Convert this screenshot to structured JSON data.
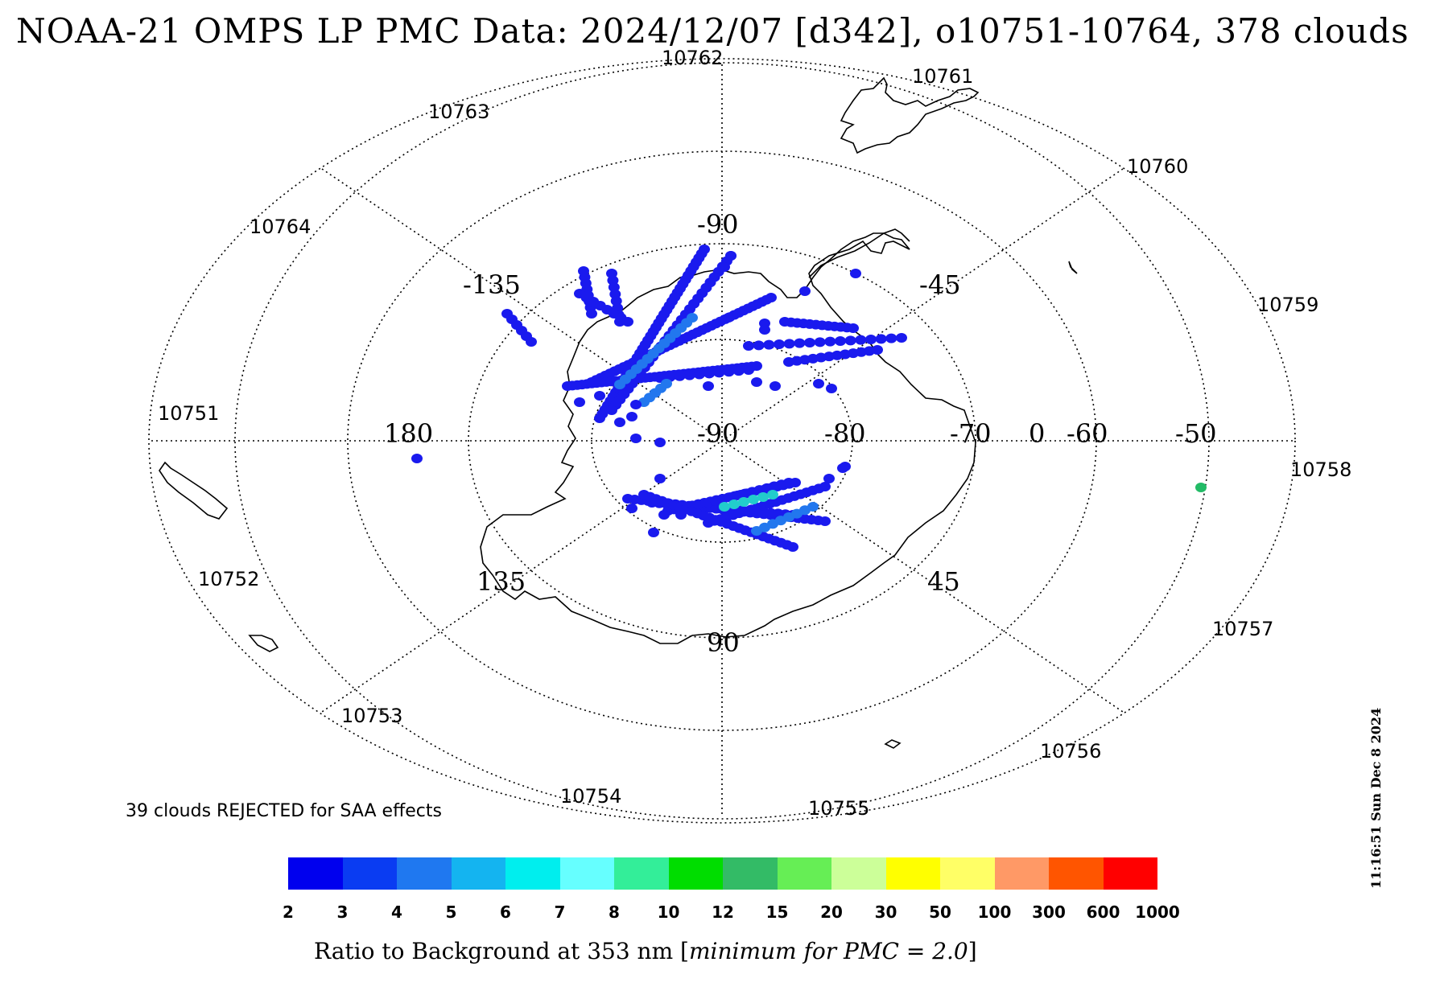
{
  "title": "NOAA-21 OMPS LP PMC Data: 2024/12/07 [d342], o10751-10764, 378 clouds",
  "timestamp": "11:16:51 Sun Dec  8 2024",
  "rejected_note": "39 clouds REJECTED for SAA effects",
  "colorbar": {
    "label_prefix": "Ratio to Background at 353 nm [",
    "label_italic": "minimum for PMC = 2.0",
    "label_suffix": "]",
    "colors": [
      "#0000ee",
      "#0a3cf2",
      "#1f78f0",
      "#14b4f0",
      "#00eeee",
      "#66ffff",
      "#33ee99",
      "#00dd00",
      "#33bb66",
      "#66ee55",
      "#ccff99",
      "#ffff00",
      "#ffff66",
      "#ff9966",
      "#ff5500",
      "#ff0000"
    ],
    "ticks": [
      "2",
      "3",
      "4",
      "5",
      "6",
      "7",
      "8",
      "10",
      "12",
      "15",
      "20",
      "30",
      "50",
      "100",
      "300",
      "600",
      "1000"
    ]
  },
  "map": {
    "lon_labels": [
      "-90",
      "-135",
      "-45",
      "180",
      "135",
      "45",
      "90",
      "0"
    ],
    "lat_labels": [
      "-90",
      "-80",
      "-70",
      "-60",
      "-50"
    ],
    "orbit_labels": [
      "10762",
      "10761",
      "10763",
      "10760",
      "10764",
      "10759",
      "10751",
      "10758",
      "10752",
      "10757",
      "10753",
      "10756",
      "10754",
      "10755"
    ],
    "point_colors": {
      "low": "#1a1aee",
      "mid": "#2277ee",
      "cyan": "#22cccc",
      "outlier": "#22bb66"
    }
  }
}
